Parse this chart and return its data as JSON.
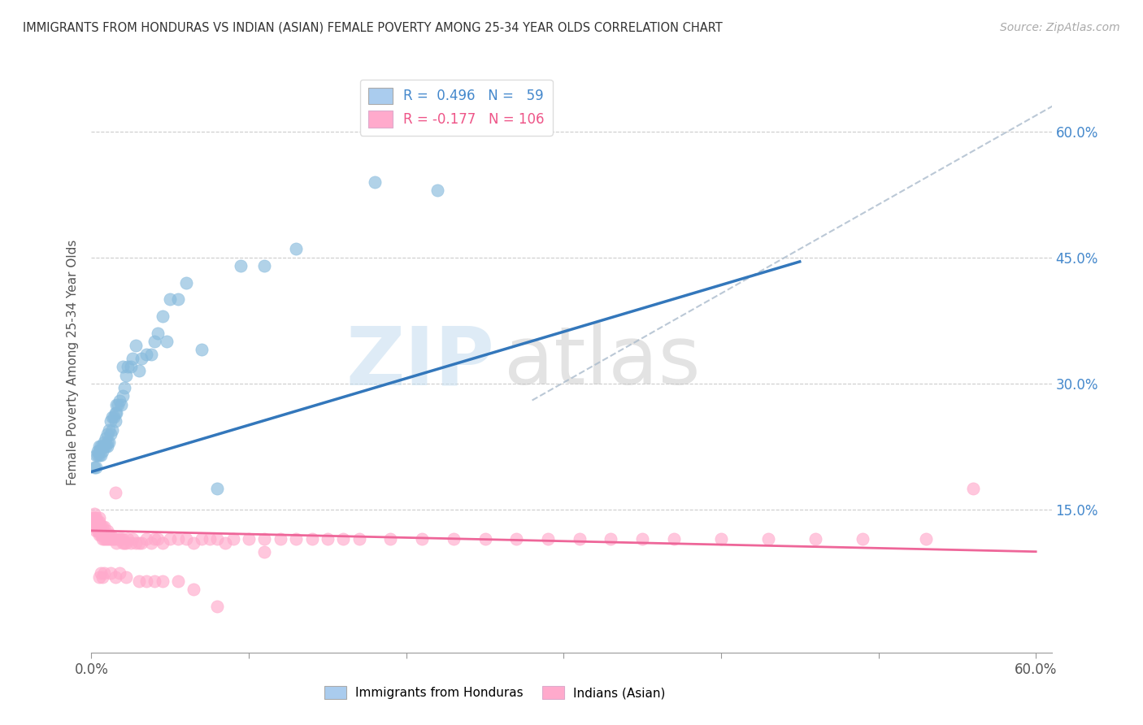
{
  "title": "IMMIGRANTS FROM HONDURAS VS INDIAN (ASIAN) FEMALE POVERTY AMONG 25-34 YEAR OLDS CORRELATION CHART",
  "source": "Source: ZipAtlas.com",
  "ylabel": "Female Poverty Among 25-34 Year Olds",
  "ytick_vals": [
    0.15,
    0.3,
    0.45,
    0.6
  ],
  "ytick_labels": [
    "15.0%",
    "30.0%",
    "45.0%",
    "60.0%"
  ],
  "xlim": [
    0.0,
    0.61
  ],
  "ylim": [
    -0.02,
    0.67
  ],
  "legend_color1": "#aaccee",
  "legend_color2": "#ffaacc",
  "scatter1_color": "#88bbdd",
  "scatter2_color": "#ffaacc",
  "trendline1_color": "#3377bb",
  "trendline2_color": "#ee6699",
  "trendline_dashed_color": "#aabbcc",
  "watermark_zip": "ZIP",
  "watermark_atlas": "atlas",
  "legend_label_blue": "Immigrants from Honduras",
  "legend_label_pink": "Indians (Asian)",
  "R1_text": "R =  0.496",
  "N1_text": "N =   59",
  "R2_text": "R = -0.177",
  "N2_text": "N = 106",
  "blue_trendline_x": [
    0.0,
    0.45
  ],
  "blue_trendline_y": [
    0.195,
    0.445
  ],
  "pink_trendline_x": [
    0.0,
    0.6
  ],
  "pink_trendline_y": [
    0.125,
    0.1
  ],
  "dash_line_x": [
    0.28,
    0.62
  ],
  "dash_line_y": [
    0.28,
    0.64
  ],
  "blue_x": [
    0.002,
    0.003,
    0.003,
    0.004,
    0.004,
    0.005,
    0.005,
    0.005,
    0.006,
    0.006,
    0.007,
    0.007,
    0.008,
    0.008,
    0.009,
    0.009,
    0.01,
    0.01,
    0.01,
    0.011,
    0.011,
    0.012,
    0.012,
    0.013,
    0.013,
    0.014,
    0.015,
    0.015,
    0.016,
    0.016,
    0.017,
    0.018,
    0.019,
    0.02,
    0.02,
    0.021,
    0.022,
    0.023,
    0.025,
    0.026,
    0.028,
    0.03,
    0.032,
    0.035,
    0.038,
    0.04,
    0.042,
    0.045,
    0.048,
    0.05,
    0.055,
    0.06,
    0.07,
    0.08,
    0.095,
    0.11,
    0.13,
    0.18,
    0.22
  ],
  "blue_y": [
    0.2,
    0.2,
    0.215,
    0.215,
    0.22,
    0.215,
    0.22,
    0.225,
    0.215,
    0.225,
    0.22,
    0.225,
    0.225,
    0.23,
    0.225,
    0.235,
    0.225,
    0.23,
    0.24,
    0.23,
    0.245,
    0.24,
    0.255,
    0.245,
    0.26,
    0.26,
    0.255,
    0.265,
    0.265,
    0.275,
    0.275,
    0.28,
    0.275,
    0.285,
    0.32,
    0.295,
    0.31,
    0.32,
    0.32,
    0.33,
    0.345,
    0.315,
    0.33,
    0.335,
    0.335,
    0.35,
    0.36,
    0.38,
    0.35,
    0.4,
    0.4,
    0.42,
    0.34,
    0.175,
    0.44,
    0.44,
    0.46,
    0.54,
    0.53
  ],
  "pink_x": [
    0.001,
    0.001,
    0.002,
    0.002,
    0.002,
    0.003,
    0.003,
    0.003,
    0.003,
    0.004,
    0.004,
    0.004,
    0.005,
    0.005,
    0.005,
    0.005,
    0.005,
    0.006,
    0.006,
    0.006,
    0.007,
    0.007,
    0.007,
    0.008,
    0.008,
    0.008,
    0.009,
    0.009,
    0.01,
    0.01,
    0.011,
    0.011,
    0.012,
    0.012,
    0.013,
    0.014,
    0.015,
    0.015,
    0.016,
    0.017,
    0.018,
    0.019,
    0.02,
    0.02,
    0.021,
    0.022,
    0.023,
    0.025,
    0.026,
    0.028,
    0.03,
    0.032,
    0.035,
    0.038,
    0.04,
    0.042,
    0.045,
    0.05,
    0.055,
    0.06,
    0.065,
    0.07,
    0.075,
    0.08,
    0.085,
    0.09,
    0.1,
    0.11,
    0.12,
    0.13,
    0.14,
    0.15,
    0.16,
    0.17,
    0.19,
    0.21,
    0.23,
    0.25,
    0.27,
    0.29,
    0.31,
    0.33,
    0.35,
    0.37,
    0.4,
    0.43,
    0.46,
    0.49,
    0.53,
    0.56,
    0.005,
    0.006,
    0.007,
    0.008,
    0.012,
    0.015,
    0.018,
    0.022,
    0.03,
    0.035,
    0.04,
    0.045,
    0.055,
    0.065,
    0.08,
    0.11
  ],
  "pink_y": [
    0.135,
    0.14,
    0.13,
    0.14,
    0.145,
    0.125,
    0.13,
    0.135,
    0.14,
    0.125,
    0.13,
    0.135,
    0.12,
    0.125,
    0.13,
    0.135,
    0.14,
    0.12,
    0.125,
    0.13,
    0.115,
    0.12,
    0.13,
    0.115,
    0.12,
    0.13,
    0.115,
    0.12,
    0.115,
    0.125,
    0.115,
    0.12,
    0.115,
    0.12,
    0.115,
    0.115,
    0.115,
    0.17,
    0.11,
    0.115,
    0.115,
    0.115,
    0.11,
    0.115,
    0.11,
    0.11,
    0.115,
    0.11,
    0.115,
    0.11,
    0.11,
    0.11,
    0.115,
    0.11,
    0.115,
    0.115,
    0.11,
    0.115,
    0.115,
    0.115,
    0.11,
    0.115,
    0.115,
    0.115,
    0.11,
    0.115,
    0.115,
    0.115,
    0.115,
    0.115,
    0.115,
    0.115,
    0.115,
    0.115,
    0.115,
    0.115,
    0.115,
    0.115,
    0.115,
    0.115,
    0.115,
    0.115,
    0.115,
    0.115,
    0.115,
    0.115,
    0.115,
    0.115,
    0.115,
    0.175,
    0.07,
    0.075,
    0.07,
    0.075,
    0.075,
    0.07,
    0.075,
    0.07,
    0.065,
    0.065,
    0.065,
    0.065,
    0.065,
    0.055,
    0.035,
    0.1
  ]
}
